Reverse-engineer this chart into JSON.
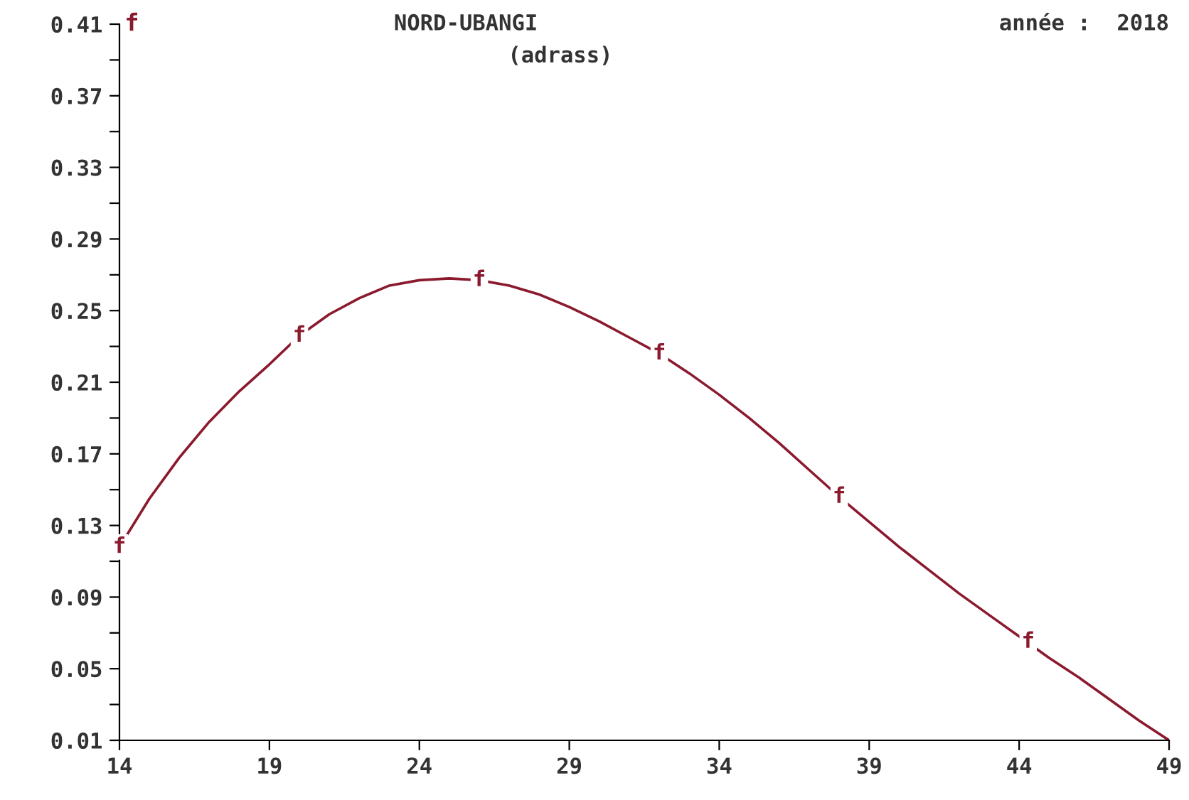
{
  "chart_data": {
    "type": "line",
    "title": "NORD-UBANGI",
    "subtitle": "(adrass)",
    "ylabel": "f",
    "annotations": [
      "année :  2018",
      {
        "text": "f",
        "x": 14,
        "y": 0.118
      },
      {
        "text": "f",
        "x": 20,
        "y": 0.236
      },
      {
        "text": "f",
        "x": 26,
        "y": 0.267
      },
      {
        "text": "f",
        "x": 32,
        "y": 0.226
      },
      {
        "text": "f",
        "x": 38,
        "y": 0.146
      },
      {
        "text": "f",
        "x": 44.3,
        "y": 0.065
      }
    ],
    "x": [
      14,
      15,
      16,
      17,
      18,
      19,
      20,
      21,
      22,
      23,
      24,
      25,
      26,
      27,
      28,
      29,
      30,
      31,
      32,
      33,
      34,
      35,
      36,
      37,
      38,
      39,
      40,
      41,
      42,
      43,
      44,
      45,
      46,
      47,
      48,
      49
    ],
    "series": [
      {
        "color": "#8b1a2e",
        "values": [
          0.118,
          0.145,
          0.168,
          0.188,
          0.205,
          0.22,
          0.236,
          0.248,
          0.257,
          0.264,
          0.267,
          0.268,
          0.267,
          0.264,
          0.259,
          0.252,
          0.244,
          0.235,
          0.226,
          0.215,
          0.203,
          0.19,
          0.176,
          0.161,
          0.146,
          0.132,
          0.118,
          0.105,
          0.092,
          0.08,
          0.068,
          0.056,
          0.045,
          0.033,
          0.021,
          0.01
        ]
      }
    ],
    "xlim": [
      14,
      49
    ],
    "xticks": [
      14,
      19,
      24,
      29,
      34,
      39,
      44,
      49
    ],
    "ylim": [
      0.01,
      0.41
    ],
    "yticks": [
      0.01,
      {
        "value": 0.03,
        "label": null
      },
      0.05,
      {
        "value": 0.07,
        "label": null
      },
      0.09,
      {
        "value": 0.11,
        "label": null
      },
      0.13,
      {
        "value": 0.15,
        "label": null
      },
      0.17,
      {
        "value": 0.19,
        "label": null
      },
      0.21,
      {
        "value": 0.23,
        "label": null
      },
      0.25,
      {
        "value": 0.27,
        "label": null
      },
      0.29,
      {
        "value": 0.31,
        "label": null
      },
      0.33,
      {
        "value": 0.35,
        "label": null
      },
      0.37,
      {
        "value": 0.39,
        "label": null
      },
      0.41
    ],
    "grid": false,
    "legend": false,
    "marker": "none",
    "line_style": "solid"
  }
}
